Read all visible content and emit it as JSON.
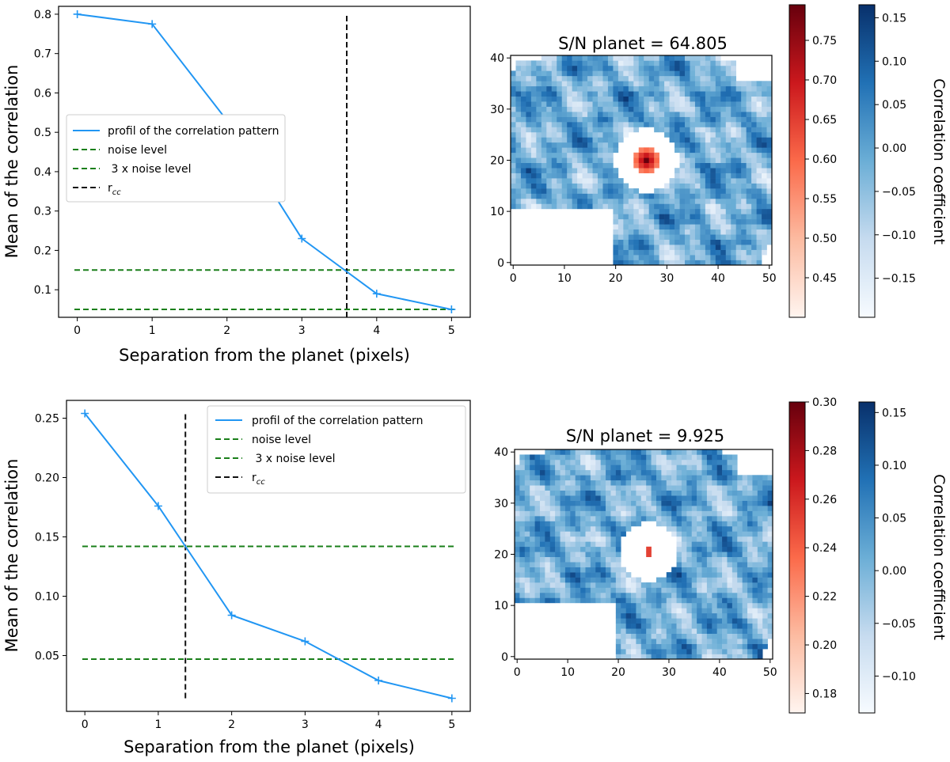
{
  "colors": {
    "profile": "#2196f3",
    "noise": "#1a7f1a",
    "rcc": "#111111",
    "red_low": "#fee5d9",
    "red_high": "#7f0000",
    "blue_low": "#eef5fc",
    "blue_high": "#08306b"
  },
  "chart_data": [
    {
      "type": "line",
      "panel": "top-left",
      "xlabel": "Separation from the planet (pixels)",
      "ylabel": "Mean of the correlation",
      "xlim": [
        -0.25,
        5.25
      ],
      "ylim": [
        0.03,
        0.82
      ],
      "xticks": [
        0,
        1,
        2,
        3,
        4,
        5
      ],
      "xtick_labels": [
        "0",
        "1",
        "2",
        "3",
        "4",
        "5"
      ],
      "yticks": [
        0.1,
        0.2,
        0.3,
        0.4,
        0.5,
        0.6,
        0.7,
        0.8
      ],
      "ytick_labels": [
        "0.1",
        "0.2",
        "0.3",
        "0.4",
        "0.5",
        "0.6",
        "0.7",
        "0.8"
      ],
      "series": [
        {
          "name": "profil of the correlation pattern",
          "x": [
            0,
            1,
            2,
            3,
            4,
            5
          ],
          "y": [
            0.8,
            0.775,
            0.53,
            0.23,
            0.09,
            0.05
          ]
        }
      ],
      "noise_level": 0.05,
      "noise3_level": 0.15,
      "rcc": 3.6,
      "rcc_range": [
        0.03,
        0.8
      ],
      "legend": {
        "position": "center-left",
        "entries": [
          "profil of the correlation pattern",
          "noise level",
          " 3 x noise level",
          "r_cc"
        ],
        "rcc_main": "r",
        "rcc_sub": "cc"
      }
    },
    {
      "type": "line",
      "panel": "bottom-left",
      "xlabel": "Separation from the planet (pixels)",
      "ylabel": "Mean of the correlation",
      "xlim": [
        -0.25,
        5.25
      ],
      "ylim": [
        0.003,
        0.265
      ],
      "xticks": [
        0,
        1,
        2,
        3,
        4,
        5
      ],
      "xtick_labels": [
        "0",
        "1",
        "2",
        "3",
        "4",
        "5"
      ],
      "yticks": [
        0.05,
        0.1,
        0.15,
        0.2,
        0.25
      ],
      "ytick_labels": [
        "0.05",
        "0.10",
        "0.15",
        "0.20",
        "0.25"
      ],
      "series": [
        {
          "name": "profil of the correlation pattern",
          "x": [
            0,
            1,
            2,
            3,
            4,
            5
          ],
          "y": [
            0.254,
            0.176,
            0.084,
            0.062,
            0.029,
            0.014
          ]
        }
      ],
      "noise_level": 0.047,
      "noise3_level": 0.142,
      "rcc": 1.37,
      "rcc_range": [
        0.014,
        0.254
      ],
      "legend": {
        "position": "top-right",
        "entries": [
          "profil of the correlation pattern",
          "noise level",
          " 3 x noise level",
          "r_cc"
        ],
        "rcc_main": "r",
        "rcc_sub": "cc"
      }
    },
    {
      "type": "heatmap",
      "panel": "top-right",
      "title": "S/N planet = 64.805",
      "xlim": [
        -0.5,
        50.5
      ],
      "ylim": [
        -0.5,
        40.5
      ],
      "xticks": [
        0,
        10,
        20,
        30,
        40,
        50
      ],
      "xtick_labels": [
        "0",
        "10",
        "20",
        "30",
        "40",
        "50"
      ],
      "yticks": [
        0,
        10,
        20,
        30,
        40
      ],
      "ytick_labels": [
        "0",
        "10",
        "20",
        "30",
        "40"
      ],
      "planet_center": [
        26,
        20
      ],
      "planet_radius": 2.4,
      "mask_radius": 6.2,
      "red_colorbar": {
        "range": [
          0.4,
          0.795
        ],
        "ticks": [
          0.45,
          0.5,
          0.55,
          0.6,
          0.65,
          0.7,
          0.75
        ],
        "tick_labels": [
          "0.45",
          "0.50",
          "0.55",
          "0.60",
          "0.65",
          "0.70",
          "0.75"
        ]
      },
      "blue_colorbar": {
        "range": [
          -0.195,
          0.165
        ],
        "ticks": [
          -0.15,
          -0.1,
          -0.05,
          0.0,
          0.05,
          0.1,
          0.15
        ],
        "tick_labels": [
          "−0.15",
          "−0.10",
          "−0.05",
          "0.00",
          "0.05",
          "0.10",
          "0.15"
        ],
        "label": "Correlation coefficient"
      },
      "seed": 7
    },
    {
      "type": "heatmap",
      "panel": "bottom-right",
      "title": "S/N planet = 9.925",
      "xlim": [
        -0.5,
        50.5
      ],
      "ylim": [
        -0.5,
        40.5
      ],
      "xticks": [
        0,
        10,
        20,
        30,
        40,
        50
      ],
      "xtick_labels": [
        "0",
        "10",
        "20",
        "30",
        "40",
        "50"
      ],
      "yticks": [
        0,
        10,
        20,
        30,
        40
      ],
      "ytick_labels": [
        "0",
        "10",
        "20",
        "30",
        "40"
      ],
      "planet_center": [
        26,
        20.5
      ],
      "planet_radius": 0.8,
      "mask_radius": 5.8,
      "red_colorbar": {
        "range": [
          0.172,
          0.3
        ],
        "ticks": [
          0.18,
          0.2,
          0.22,
          0.24,
          0.26,
          0.28,
          0.3
        ],
        "tick_labels": [
          "0.18",
          "0.20",
          "0.22",
          "0.24",
          "0.26",
          "0.28",
          "0.30"
        ]
      },
      "blue_colorbar": {
        "range": [
          -0.135,
          0.16
        ],
        "ticks": [
          -0.1,
          -0.05,
          0.0,
          0.05,
          0.1,
          0.15
        ],
        "tick_labels": [
          "−0.10",
          "−0.05",
          "0.00",
          "0.05",
          "0.10",
          "0.15"
        ],
        "label": "Correlation coefficient"
      },
      "seed": 19
    }
  ]
}
